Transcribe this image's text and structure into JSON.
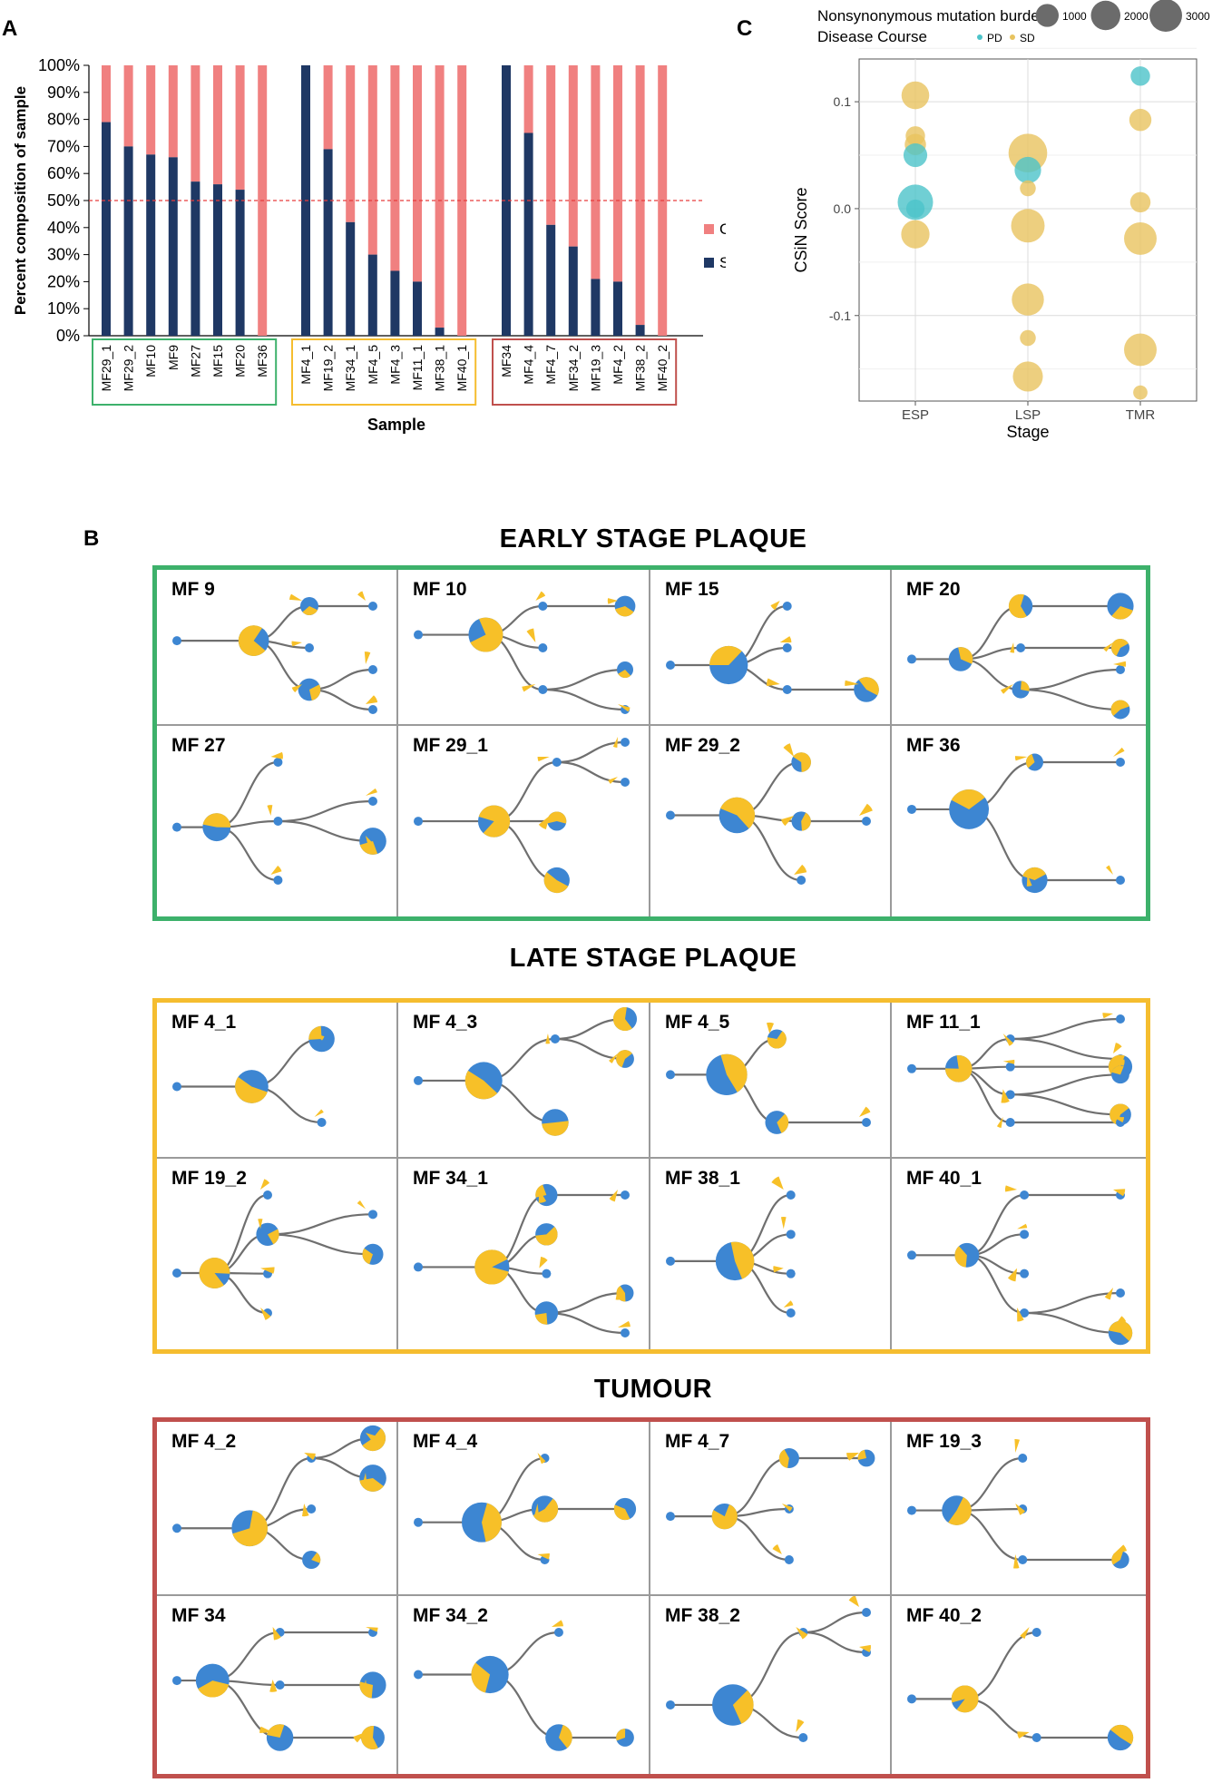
{
  "panels": {
    "A": "A",
    "B": "B",
    "C": "C"
  },
  "colors": {
    "stem": "#1f3864",
    "clade": "#f08080",
    "threshold": "#e63c3c",
    "early": "#3db16b",
    "late": "#f5bd2f",
    "tumour": "#c0504d",
    "node_blue": "#3d86d2",
    "node_yellow": "#f7c028",
    "edge": "#6f6f6f",
    "pd": "#4cc3c9",
    "sd": "#e8c35f"
  },
  "chart_data": [
    {
      "id": "A",
      "type": "bar",
      "stacked": true,
      "ylabel": "Percent composition of sample",
      "xlabel": "Sample",
      "yticks": [
        "0%",
        "10%",
        "20%",
        "30%",
        "40%",
        "50%",
        "60%",
        "70%",
        "80%",
        "90%",
        "100%"
      ],
      "ylim": [
        0,
        100
      ],
      "threshold": 50,
      "legend": [
        {
          "name": "Clade"
        },
        {
          "name": "Stem"
        }
      ],
      "groups": [
        {
          "name": "early",
          "categories": [
            "MF29_1",
            "MF29_2",
            "MF10",
            "MF9",
            "MF27",
            "MF15",
            "MF20",
            "MF36"
          ],
          "stem": [
            79,
            70,
            67,
            66,
            57,
            56,
            54,
            0
          ]
        },
        {
          "name": "late",
          "categories": [
            "MF4_1",
            "MF19_2",
            "MF34_1",
            "MF4_5",
            "MF4_3",
            "MF11_1",
            "MF38_1",
            "MF40_1"
          ],
          "stem": [
            100,
            69,
            42,
            30,
            24,
            20,
            3,
            0
          ]
        },
        {
          "name": "tumour",
          "categories": [
            "MF34",
            "MF4_4",
            "MF4_7",
            "MF34_2",
            "MF19_3",
            "MF4_2",
            "MF38_2",
            "MF40_2"
          ],
          "stem": [
            100,
            75,
            41,
            33,
            21,
            20,
            4,
            0
          ]
        }
      ]
    },
    {
      "id": "C",
      "type": "scatter",
      "ylabel": "CSiN Score",
      "xlabel": "Stage",
      "categories": [
        "ESP",
        "LSP",
        "TMR"
      ],
      "ylim": [
        -0.18,
        0.14
      ],
      "yticks": [
        0.1,
        0.0,
        -0.1
      ],
      "ytick_labels": [
        "0.1",
        "0.0",
        "-0.1"
      ],
      "legend_size_title": "Nonsynonymous mutation burden",
      "legend_size_values": [
        1000,
        2000,
        3000
      ],
      "legend_color_title": "Disease Course",
      "legend_color_entries": [
        "PD",
        "SD"
      ],
      "points": [
        {
          "stage": "ESP",
          "y": 0.106,
          "burden": 1700,
          "course": "SD"
        },
        {
          "stage": "ESP",
          "y": 0.068,
          "burden": 600,
          "course": "SD"
        },
        {
          "stage": "ESP",
          "y": 0.06,
          "burden": 800,
          "course": "SD"
        },
        {
          "stage": "ESP",
          "y": 0.05,
          "burden": 1100,
          "course": "PD"
        },
        {
          "stage": "ESP",
          "y": 0.006,
          "burden": 3200,
          "course": "PD"
        },
        {
          "stage": "ESP",
          "y": 0.0,
          "burden": 500,
          "course": "PD"
        },
        {
          "stage": "ESP",
          "y": -0.024,
          "burden": 1800,
          "course": "SD"
        },
        {
          "stage": "LSP",
          "y": 0.052,
          "burden": 4000,
          "course": "SD"
        },
        {
          "stage": "LSP",
          "y": 0.036,
          "burden": 1500,
          "course": "PD"
        },
        {
          "stage": "LSP",
          "y": 0.019,
          "burden": 300,
          "course": "SD"
        },
        {
          "stage": "LSP",
          "y": -0.016,
          "burden": 2800,
          "course": "SD"
        },
        {
          "stage": "LSP",
          "y": -0.085,
          "burden": 2500,
          "course": "SD"
        },
        {
          "stage": "LSP",
          "y": -0.121,
          "burden": 300,
          "course": "SD"
        },
        {
          "stage": "LSP",
          "y": -0.157,
          "burden": 2100,
          "course": "SD"
        },
        {
          "stage": "TMR",
          "y": 0.124,
          "burden": 600,
          "course": "PD"
        },
        {
          "stage": "TMR",
          "y": 0.083,
          "burden": 900,
          "course": "SD"
        },
        {
          "stage": "TMR",
          "y": 0.006,
          "burden": 700,
          "course": "SD"
        },
        {
          "stage": "TMR",
          "y": -0.028,
          "burden": 2600,
          "course": "SD"
        },
        {
          "stage": "TMR",
          "y": -0.132,
          "burden": 2600,
          "course": "SD"
        },
        {
          "stage": "TMR",
          "y": -0.172,
          "burden": 200,
          "course": "SD"
        }
      ]
    }
  ],
  "trees": [
    {
      "title": "EARLY STAGE PLAQUE",
      "samples": [
        "MF 9",
        "MF 10",
        "MF 15",
        "MF 20",
        "MF 27",
        "MF 29_1",
        "MF 29_2",
        "MF 36"
      ]
    },
    {
      "title": "LATE STAGE PLAQUE",
      "samples": [
        "MF 4_1",
        "MF 4_3",
        "MF 4_5",
        "MF 11_1",
        "MF 19_2",
        "MF 34_1",
        "MF 38_1",
        "MF 40_1"
      ]
    },
    {
      "title": "TUMOUR",
      "samples": [
        "MF 4_2",
        "MF 4_4",
        "MF 4_7",
        "MF 19_3",
        "MF 34",
        "MF 34_2",
        "MF 38_2",
        "MF 40_2"
      ]
    }
  ]
}
